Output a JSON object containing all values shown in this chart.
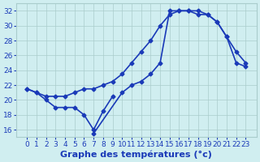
{
  "title": "",
  "xlabel": "Graphe des températures (°c)",
  "hours": [
    0,
    1,
    2,
    3,
    4,
    5,
    6,
    7,
    8,
    9,
    10,
    11,
    12,
    13,
    14,
    15,
    16,
    17,
    18,
    19,
    20,
    21,
    22,
    23
  ],
  "line1": [
    21.5,
    21.0,
    20.5,
    20.5,
    20.5,
    21.0,
    21.5,
    21.5,
    22.0,
    22.5,
    23.5,
    25.0,
    26.5,
    28.0,
    30.0,
    31.5,
    32.0,
    32.0,
    31.5,
    31.5,
    30.5,
    28.5,
    26.5,
    25.0
  ],
  "line2": [
    21.5,
    21.0,
    20.0,
    19.0,
    19.0,
    19.0,
    18.0,
    16.0,
    18.5,
    20.5,
    null,
    null,
    null,
    null,
    null,
    null,
    null,
    null,
    null,
    null,
    null,
    null,
    null,
    null
  ],
  "line3": [
    null,
    null,
    null,
    null,
    null,
    null,
    null,
    15.5,
    null,
    null,
    21.0,
    22.0,
    22.5,
    23.5,
    25.0,
    32.0,
    32.0,
    32.0,
    32.0,
    31.5,
    30.5,
    28.5,
    25.0,
    24.5
  ],
  "bg_color": "#d0eef0",
  "grid_color": "#aacccc",
  "line_color": "#1a3ab8",
  "marker": "D",
  "markersize": 2.5,
  "linewidth": 1.2,
  "ylim": [
    15,
    33
  ],
  "yticks": [
    16,
    18,
    20,
    22,
    24,
    26,
    28,
    30,
    32
  ],
  "xticks": [
    0,
    1,
    2,
    3,
    4,
    5,
    6,
    7,
    8,
    9,
    10,
    11,
    12,
    13,
    14,
    15,
    16,
    17,
    18,
    19,
    20,
    21,
    22,
    23
  ],
  "xlabel_fontsize": 8,
  "tick_fontsize": 6.5
}
